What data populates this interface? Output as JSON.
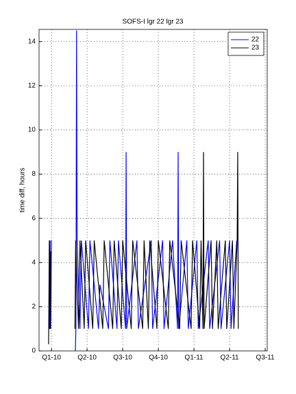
{
  "chart_data": {
    "type": "line",
    "title": "SOFS-I lgr 22 lgr 23",
    "ylabel": "time diff, hours",
    "xlim": [
      2009.913,
      2011.514
    ],
    "ylim": [
      0,
      14.55
    ],
    "xticks": [
      {
        "value": 2010.0,
        "label": "Q1-10"
      },
      {
        "value": 2010.25,
        "label": "Q2-10"
      },
      {
        "value": 2010.5,
        "label": "Q3-10"
      },
      {
        "value": 2010.75,
        "label": "Q4-10"
      },
      {
        "value": 2011.0,
        "label": "Q1-11"
      },
      {
        "value": 2011.25,
        "label": "Q2-11"
      },
      {
        "value": 2011.5,
        "label": "Q3-11"
      }
    ],
    "yticks": [
      0,
      2,
      4,
      6,
      8,
      10,
      12,
      14
    ],
    "grid": true,
    "legend": "upper-right",
    "series": [
      {
        "name": "22",
        "color": "#0000ff",
        "x": [
          2009.985,
          2009.99,
          2009.995,
          2010.0,
          2010.08,
          2010.168,
          2010.172,
          2010.176,
          2010.18,
          2010.2,
          2010.21,
          2010.26,
          2010.27,
          2010.33,
          2010.34,
          2010.4,
          2010.41,
          2010.46,
          2010.47,
          2010.52,
          2010.524,
          2010.528,
          2010.6,
          2010.61,
          2010.7,
          2010.71,
          2010.78,
          2010.79,
          2010.85,
          2010.885,
          2010.889,
          2010.893,
          2010.95,
          2010.96,
          2011.02,
          2011.03,
          2011.1,
          2011.11,
          2011.18,
          2011.19,
          2011.25,
          2011.26,
          2011.3
        ],
        "values": [
          1,
          5,
          1,
          5,
          null,
          0,
          1.2,
          14.5,
          5,
          1,
          5,
          1,
          5,
          1,
          3,
          1,
          5,
          1,
          5,
          1,
          9,
          1,
          5,
          1,
          5,
          1,
          5,
          1,
          5,
          1,
          9,
          1,
          5,
          1,
          5,
          1,
          5,
          1,
          5,
          1,
          5,
          1,
          5
        ]
      },
      {
        "name": "23",
        "color": "#000000",
        "x": [
          2009.98,
          2009.985,
          2009.99,
          2009.995,
          2010.08,
          2010.165,
          2010.17,
          2010.19,
          2010.2,
          2010.23,
          2010.24,
          2010.29,
          2010.3,
          2010.36,
          2010.37,
          2010.43,
          2010.44,
          2010.49,
          2010.5,
          2010.56,
          2010.57,
          2010.64,
          2010.65,
          2010.68,
          2010.69,
          2010.74,
          2010.75,
          2010.82,
          2010.83,
          2010.9,
          2010.91,
          2010.98,
          2010.99,
          2011.04,
          2011.05,
          2011.063,
          2011.067,
          2011.071,
          2011.12,
          2011.13,
          2011.16,
          2011.17,
          2011.22,
          2011.23,
          2011.27,
          2011.28,
          2011.303,
          2011.307,
          2011.311
        ],
        "values": [
          0.3,
          5,
          1,
          4.5,
          null,
          1,
          5,
          1,
          5,
          1,
          5,
          1,
          5,
          1,
          5,
          1,
          5,
          1,
          5,
          1,
          5,
          1,
          5,
          1,
          5,
          1,
          5,
          1,
          5,
          1,
          5,
          1,
          5,
          1,
          5,
          1,
          9,
          1,
          5,
          1,
          5,
          1,
          5,
          1,
          5,
          1,
          5,
          9,
          1
        ]
      }
    ]
  }
}
